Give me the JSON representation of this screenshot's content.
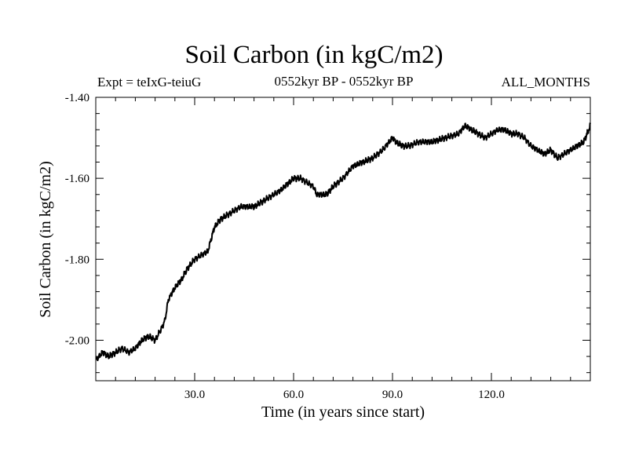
{
  "header": {
    "title": "Soil Carbon (in kgC/m2)",
    "experiment": "Expt = teIxG-teiuG",
    "period": "0552kyr BP - 0552kyr BP",
    "months": "ALL_MONTHS"
  },
  "chart_data": {
    "type": "line",
    "title": "Soil Carbon (in kgC/m2)",
    "xlabel": "Time (in years since start)",
    "ylabel": "Soil Carbon (in kgC/m2)",
    "xlim": [
      0,
      150
    ],
    "ylim": [
      -2.1,
      -1.4
    ],
    "x_ticks": [
      30,
      60,
      90,
      120
    ],
    "x_tick_labels": [
      "30.0",
      "60.0",
      "90.0",
      "120.0"
    ],
    "y_ticks": [
      -2.0,
      -1.8,
      -1.6,
      -1.4
    ],
    "y_tick_labels": [
      "-2.00",
      "-1.80",
      "-1.60",
      "-1.40"
    ],
    "grid": false,
    "line_color": "#000000",
    "series": [
      {
        "x": [
          0,
          2,
          4,
          6,
          8,
          10,
          12,
          14,
          16,
          18,
          20,
          21,
          22,
          24,
          26,
          28,
          30,
          32,
          34,
          36,
          38,
          40,
          44,
          48,
          52,
          56,
          60,
          62,
          64,
          66,
          67,
          68,
          70,
          72,
          75,
          78,
          81,
          84,
          87,
          89,
          90,
          91,
          93,
          95,
          98,
          102,
          106,
          110,
          112,
          114,
          116,
          118,
          120,
          122,
          124,
          126,
          128,
          130,
          132,
          134,
          136,
          138,
          140,
          142,
          144,
          146,
          148,
          150
        ],
        "y": [
          -2.05,
          -2.03,
          -2.04,
          -2.03,
          -2.02,
          -2.03,
          -2.02,
          -2.0,
          -1.99,
          -2.0,
          -1.97,
          -1.95,
          -1.9,
          -1.87,
          -1.85,
          -1.82,
          -1.8,
          -1.79,
          -1.78,
          -1.72,
          -1.7,
          -1.69,
          -1.67,
          -1.67,
          -1.65,
          -1.63,
          -1.6,
          -1.6,
          -1.61,
          -1.62,
          -1.64,
          -1.64,
          -1.64,
          -1.62,
          -1.6,
          -1.57,
          -1.56,
          -1.55,
          -1.53,
          -1.51,
          -1.5,
          -1.51,
          -1.52,
          -1.52,
          -1.51,
          -1.51,
          -1.5,
          -1.49,
          -1.47,
          -1.48,
          -1.49,
          -1.5,
          -1.49,
          -1.48,
          -1.48,
          -1.49,
          -1.49,
          -1.5,
          -1.52,
          -1.53,
          -1.54,
          -1.53,
          -1.55,
          -1.54,
          -1.53,
          -1.52,
          -1.51,
          -1.47
        ]
      }
    ]
  }
}
